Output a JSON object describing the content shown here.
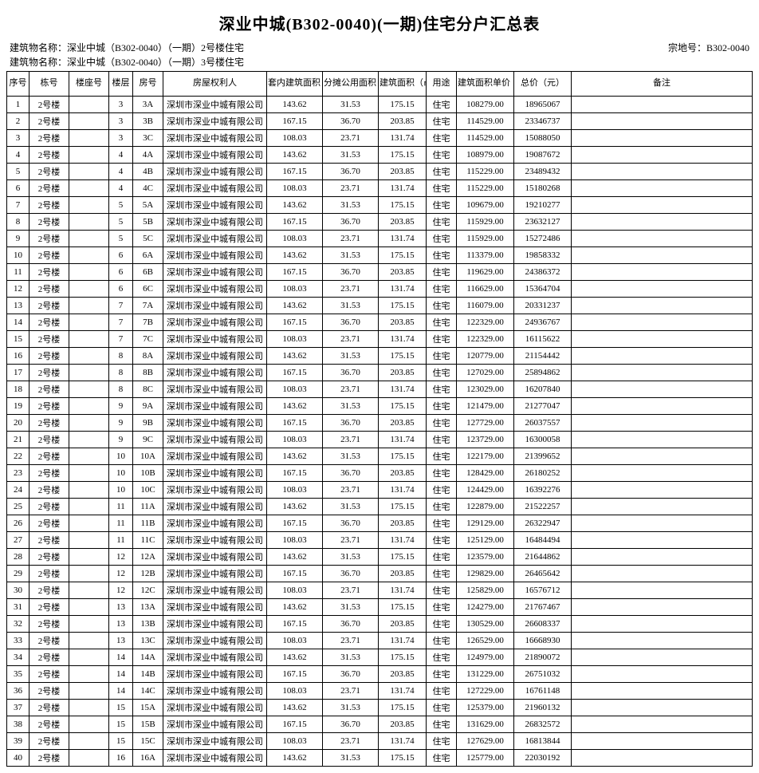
{
  "title": "深业中城(B302-0040)(一期)住宅分户汇总表",
  "meta": {
    "line1": "建筑物名称：深业中城（B302-0040）（一期）2号楼住宅",
    "line2": "建筑物名称：深业中城（B302-0040）（一期）3号楼住宅",
    "parcel_label": "宗地号：",
    "parcel_value": "B302-0040"
  },
  "columns": [
    "序号",
    "栋号",
    "楼座号",
    "楼层",
    "房号",
    "房屋权利人",
    "套内建筑面积（㎡）",
    "分摊公用面积（㎡）",
    "建筑面积（㎡）",
    "用途",
    "建筑面积单价（元/㎡）",
    "总价（元）",
    "备注"
  ],
  "owner": "深圳市深业中城有限公司",
  "building": "2号楼",
  "use": "住宅",
  "rows": [
    [
      1,
      3,
      "3A",
      "143.62",
      "31.53",
      "175.15",
      "108279.00",
      "18965067"
    ],
    [
      2,
      3,
      "3B",
      "167.15",
      "36.70",
      "203.85",
      "114529.00",
      "23346737"
    ],
    [
      3,
      3,
      "3C",
      "108.03",
      "23.71",
      "131.74",
      "114529.00",
      "15088050"
    ],
    [
      4,
      4,
      "4A",
      "143.62",
      "31.53",
      "175.15",
      "108979.00",
      "19087672"
    ],
    [
      5,
      4,
      "4B",
      "167.15",
      "36.70",
      "203.85",
      "115229.00",
      "23489432"
    ],
    [
      6,
      4,
      "4C",
      "108.03",
      "23.71",
      "131.74",
      "115229.00",
      "15180268"
    ],
    [
      7,
      5,
      "5A",
      "143.62",
      "31.53",
      "175.15",
      "109679.00",
      "19210277"
    ],
    [
      8,
      5,
      "5B",
      "167.15",
      "36.70",
      "203.85",
      "115929.00",
      "23632127"
    ],
    [
      9,
      5,
      "5C",
      "108.03",
      "23.71",
      "131.74",
      "115929.00",
      "15272486"
    ],
    [
      10,
      6,
      "6A",
      "143.62",
      "31.53",
      "175.15",
      "113379.00",
      "19858332"
    ],
    [
      11,
      6,
      "6B",
      "167.15",
      "36.70",
      "203.85",
      "119629.00",
      "24386372"
    ],
    [
      12,
      6,
      "6C",
      "108.03",
      "23.71",
      "131.74",
      "116629.00",
      "15364704"
    ],
    [
      13,
      7,
      "7A",
      "143.62",
      "31.53",
      "175.15",
      "116079.00",
      "20331237"
    ],
    [
      14,
      7,
      "7B",
      "167.15",
      "36.70",
      "203.85",
      "122329.00",
      "24936767"
    ],
    [
      15,
      7,
      "7C",
      "108.03",
      "23.71",
      "131.74",
      "122329.00",
      "16115622"
    ],
    [
      16,
      8,
      "8A",
      "143.62",
      "31.53",
      "175.15",
      "120779.00",
      "21154442"
    ],
    [
      17,
      8,
      "8B",
      "167.15",
      "36.70",
      "203.85",
      "127029.00",
      "25894862"
    ],
    [
      18,
      8,
      "8C",
      "108.03",
      "23.71",
      "131.74",
      "123029.00",
      "16207840"
    ],
    [
      19,
      9,
      "9A",
      "143.62",
      "31.53",
      "175.15",
      "121479.00",
      "21277047"
    ],
    [
      20,
      9,
      "9B",
      "167.15",
      "36.70",
      "203.85",
      "127729.00",
      "26037557"
    ],
    [
      21,
      9,
      "9C",
      "108.03",
      "23.71",
      "131.74",
      "123729.00",
      "16300058"
    ],
    [
      22,
      10,
      "10A",
      "143.62",
      "31.53",
      "175.15",
      "122179.00",
      "21399652"
    ],
    [
      23,
      10,
      "10B",
      "167.15",
      "36.70",
      "203.85",
      "128429.00",
      "26180252"
    ],
    [
      24,
      10,
      "10C",
      "108.03",
      "23.71",
      "131.74",
      "124429.00",
      "16392276"
    ],
    [
      25,
      11,
      "11A",
      "143.62",
      "31.53",
      "175.15",
      "122879.00",
      "21522257"
    ],
    [
      26,
      11,
      "11B",
      "167.15",
      "36.70",
      "203.85",
      "129129.00",
      "26322947"
    ],
    [
      27,
      11,
      "11C",
      "108.03",
      "23.71",
      "131.74",
      "125129.00",
      "16484494"
    ],
    [
      28,
      12,
      "12A",
      "143.62",
      "31.53",
      "175.15",
      "123579.00",
      "21644862"
    ],
    [
      29,
      12,
      "12B",
      "167.15",
      "36.70",
      "203.85",
      "129829.00",
      "26465642"
    ],
    [
      30,
      12,
      "12C",
      "108.03",
      "23.71",
      "131.74",
      "125829.00",
      "16576712"
    ],
    [
      31,
      13,
      "13A",
      "143.62",
      "31.53",
      "175.15",
      "124279.00",
      "21767467"
    ],
    [
      32,
      13,
      "13B",
      "167.15",
      "36.70",
      "203.85",
      "130529.00",
      "26608337"
    ],
    [
      33,
      13,
      "13C",
      "108.03",
      "23.71",
      "131.74",
      "126529.00",
      "16668930"
    ],
    [
      34,
      14,
      "14A",
      "143.62",
      "31.53",
      "175.15",
      "124979.00",
      "21890072"
    ],
    [
      35,
      14,
      "14B",
      "167.15",
      "36.70",
      "203.85",
      "131229.00",
      "26751032"
    ],
    [
      36,
      14,
      "14C",
      "108.03",
      "23.71",
      "131.74",
      "127229.00",
      "16761148"
    ],
    [
      37,
      15,
      "15A",
      "143.62",
      "31.53",
      "175.15",
      "125379.00",
      "21960132"
    ],
    [
      38,
      15,
      "15B",
      "167.15",
      "36.70",
      "203.85",
      "131629.00",
      "26832572"
    ],
    [
      39,
      15,
      "15C",
      "108.03",
      "23.71",
      "131.74",
      "127629.00",
      "16813844"
    ],
    [
      40,
      16,
      "16A",
      "143.62",
      "31.53",
      "175.15",
      "125779.00",
      "22030192"
    ]
  ]
}
